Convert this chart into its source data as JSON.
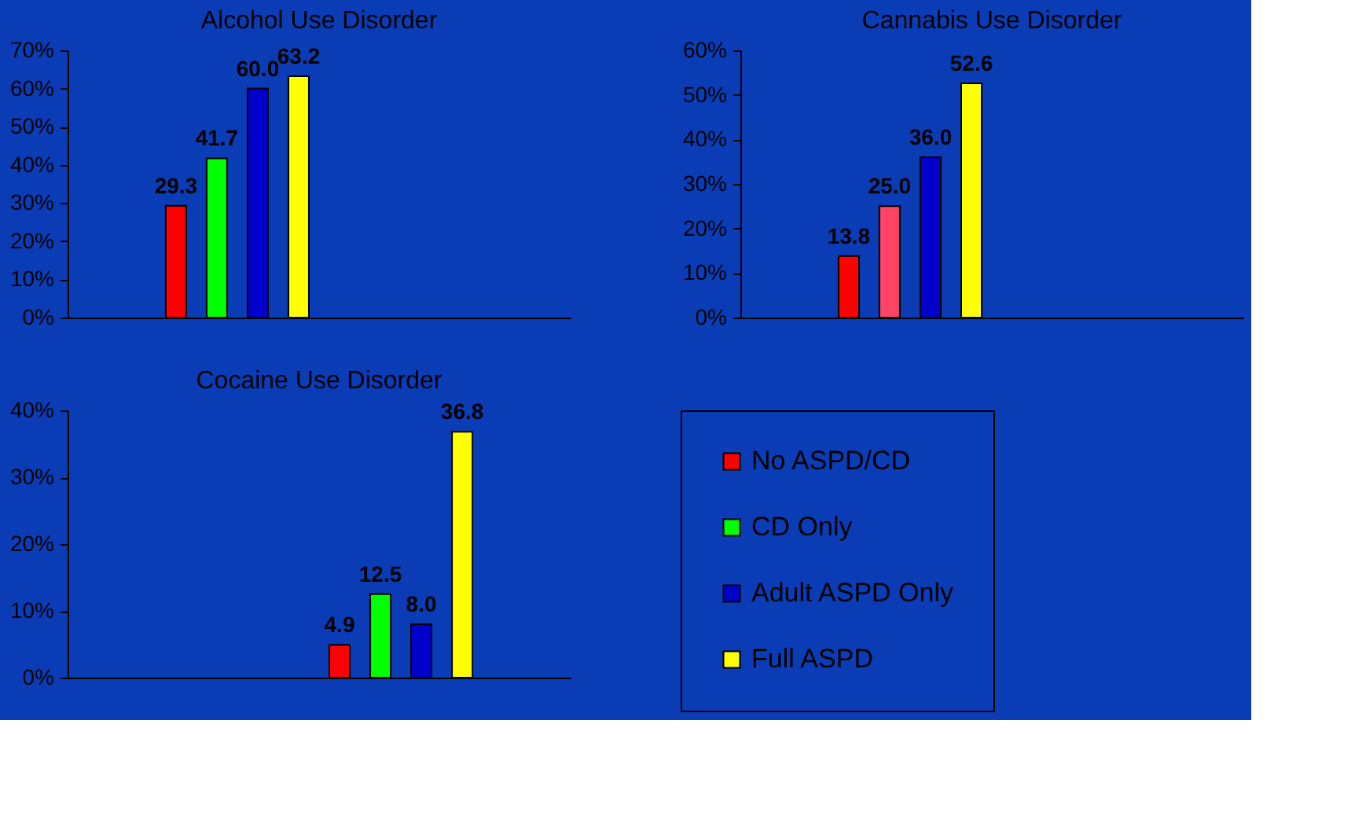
{
  "chart_data": [
    {
      "type": "bar",
      "title": "Alcohol Use Disorder",
      "categories": [
        null
      ],
      "ylim": [
        0,
        70
      ],
      "yticks": [
        {
          "value": 0,
          "label": "0%"
        },
        {
          "value": 10,
          "label": "10%"
        },
        {
          "value": 20,
          "label": "20%"
        },
        {
          "value": 30,
          "label": "30%"
        },
        {
          "value": 40,
          "label": "40%"
        },
        {
          "value": 50,
          "label": "50%"
        },
        {
          "value": 60,
          "label": "60%"
        },
        {
          "value": 70,
          "label": "70%"
        }
      ],
      "grid": false,
      "legend": false,
      "series": [
        {
          "color": "#ff0000",
          "values": [
            29.3
          ],
          "value_labels": [
            "29.3"
          ]
        },
        {
          "color": "#00ff00",
          "values": [
            41.7
          ],
          "value_labels": [
            "41.7"
          ]
        },
        {
          "color": "#0000cc",
          "values": [
            60.0
          ],
          "value_labels": [
            "60.0"
          ]
        },
        {
          "color": "#ffff00",
          "values": [
            63.2
          ],
          "value_labels": [
            "63.2"
          ]
        }
      ]
    },
    {
      "type": "bar",
      "title": "Cannabis Use Disorder",
      "categories": [
        null
      ],
      "ylim": [
        0,
        60
      ],
      "yticks": [
        {
          "value": 0,
          "label": "0%"
        },
        {
          "value": 10,
          "label": "10%"
        },
        {
          "value": 20,
          "label": "20%"
        },
        {
          "value": 30,
          "label": "30%"
        },
        {
          "value": 40,
          "label": "40%"
        },
        {
          "value": 50,
          "label": "50%"
        },
        {
          "value": 60,
          "label": "60%"
        }
      ],
      "grid": false,
      "legend": false,
      "series": [
        {
          "color": "#ff0000",
          "values": [
            13.8
          ],
          "value_labels": [
            "13.8"
          ]
        },
        {
          "color": "#ff4466",
          "values": [
            25.0
          ],
          "value_labels": [
            "25.0"
          ]
        },
        {
          "color": "#0000cc",
          "values": [
            36.0
          ],
          "value_labels": [
            "36.0"
          ]
        },
        {
          "color": "#ffff00",
          "values": [
            52.6
          ],
          "value_labels": [
            "52.6"
          ]
        }
      ]
    },
    {
      "type": "bar",
      "title": "Cocaine Use Disorder",
      "categories": [
        null
      ],
      "ylim": [
        0,
        40
      ],
      "yticks": [
        {
          "value": 0,
          "label": "0%"
        },
        {
          "value": 10,
          "label": "10%"
        },
        {
          "value": 20,
          "label": "20%"
        },
        {
          "value": 30,
          "label": "30%"
        },
        {
          "value": 40,
          "label": "40%"
        }
      ],
      "grid": false,
      "legend": "right",
      "series": [
        {
          "name": "No ASPD/CD",
          "color": "#ff0000",
          "values": [
            4.9
          ],
          "value_labels": [
            "4.9"
          ]
        },
        {
          "name": "CD Only",
          "color": "#00ff00",
          "values": [
            12.5
          ],
          "value_labels": [
            "12.5"
          ]
        },
        {
          "name": "Adult ASPD Only",
          "color": "#0000cc",
          "values": [
            8.0
          ],
          "value_labels": [
            "8.0"
          ]
        },
        {
          "name": "Full ASPD",
          "color": "#ffff00",
          "values": [
            36.8
          ],
          "value_labels": [
            "36.8"
          ]
        }
      ]
    }
  ]
}
